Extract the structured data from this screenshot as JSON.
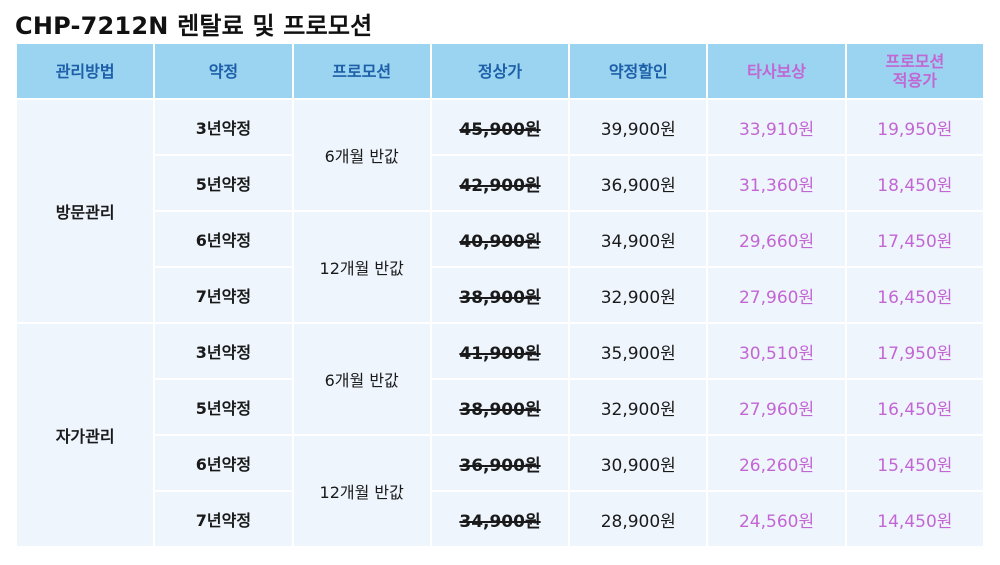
{
  "title": "CHP-7212N 렌탈료 및 프로모션",
  "headers": {
    "method": "관리방법",
    "contract": "약정",
    "promotion": "프로모션",
    "regular": "정상가",
    "discount": "약정할인",
    "competitor": "타사보상",
    "promo_applied_line1": "프로모션",
    "promo_applied_line2": "적용가"
  },
  "groups": [
    {
      "method": "방문관리",
      "promos": [
        "6개월 반값",
        "12개월 반값"
      ],
      "rows": [
        {
          "contract": "3년약정",
          "regular": "45,900원",
          "discount": "39,900원",
          "competitor": "33,910원",
          "promo_price": "19,950원"
        },
        {
          "contract": "5년약정",
          "regular": "42,900원",
          "discount": "36,900원",
          "competitor": "31,360원",
          "promo_price": "18,450원"
        },
        {
          "contract": "6년약정",
          "regular": "40,900원",
          "discount": "34,900원",
          "competitor": "29,660원",
          "promo_price": "17,450원"
        },
        {
          "contract": "7년약정",
          "regular": "38,900원",
          "discount": "32,900원",
          "competitor": "27,960원",
          "promo_price": "16,450원"
        }
      ]
    },
    {
      "method": "자가관리",
      "promos": [
        "6개월 반값",
        "12개월 반값"
      ],
      "rows": [
        {
          "contract": "3년약정",
          "regular": "41,900원",
          "discount": "35,900원",
          "competitor": "30,510원",
          "promo_price": "17,950원"
        },
        {
          "contract": "5년약정",
          "regular": "38,900원",
          "discount": "32,900원",
          "competitor": "27,960원",
          "promo_price": "16,450원"
        },
        {
          "contract": "6년약정",
          "regular": "36,900원",
          "discount": "30,900원",
          "competitor": "26,260원",
          "promo_price": "15,450원"
        },
        {
          "contract": "7년약정",
          "regular": "34,900원",
          "discount": "28,900원",
          "competitor": "24,560원",
          "promo_price": "14,450원"
        }
      ]
    }
  ],
  "colors": {
    "header_bg": "#9bd4f1",
    "header_text": "#1d5fa8",
    "accent_pink": "#c266d3",
    "cell_bg": "#eef5fd"
  }
}
